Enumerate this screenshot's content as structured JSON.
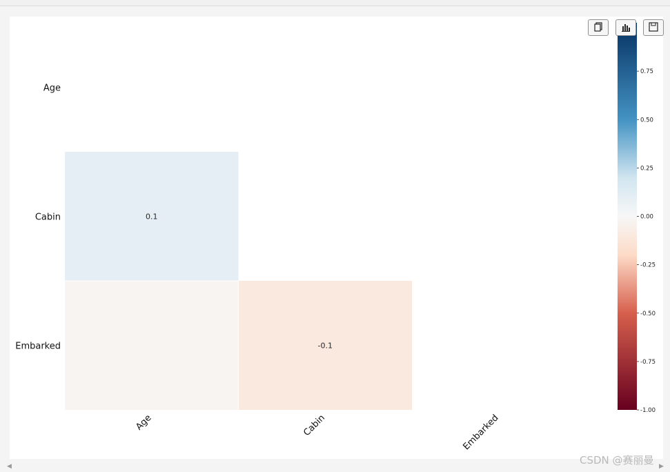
{
  "toolbar": {
    "copy_icon": "copy-icon",
    "chart_icon": "bar-chart-icon",
    "save_icon": "save-icon"
  },
  "watermark": "CSDN @赛丽曼",
  "colors": {
    "neg_end": "#67001f",
    "neg_mid": "#d6604d",
    "neg_light": "#fddbc7",
    "neutral": "#f7f7f7",
    "pos_light": "#d1e5f0",
    "pos_mid": "#4393c3",
    "pos_end": "#053061"
  },
  "chart_data": {
    "type": "heatmap",
    "title": "",
    "rows": [
      "Age",
      "Cabin",
      "Embarked"
    ],
    "columns": [
      "Age",
      "Cabin",
      "Embarked"
    ],
    "mask": "upper-triangle-including-diagonal",
    "cells": [
      {
        "row": "Cabin",
        "col": "Age",
        "value": 0.1,
        "label": "0.1"
      },
      {
        "row": "Embarked",
        "col": "Age",
        "value": -0.02,
        "label": ""
      },
      {
        "row": "Embarked",
        "col": "Cabin",
        "value": -0.1,
        "label": "-0.1"
      }
    ],
    "colorbar": {
      "vmin": -1.0,
      "vmax": 1.0,
      "colormap": "RdBu",
      "ticks": [
        "0.75",
        "0.50",
        "0.25",
        "0.00",
        "-0.25",
        "-0.50",
        "-0.75",
        "-1.00"
      ],
      "tick_values": [
        0.75,
        0.5,
        0.25,
        0.0,
        -0.25,
        -0.5,
        -0.75,
        -1.0
      ]
    }
  }
}
